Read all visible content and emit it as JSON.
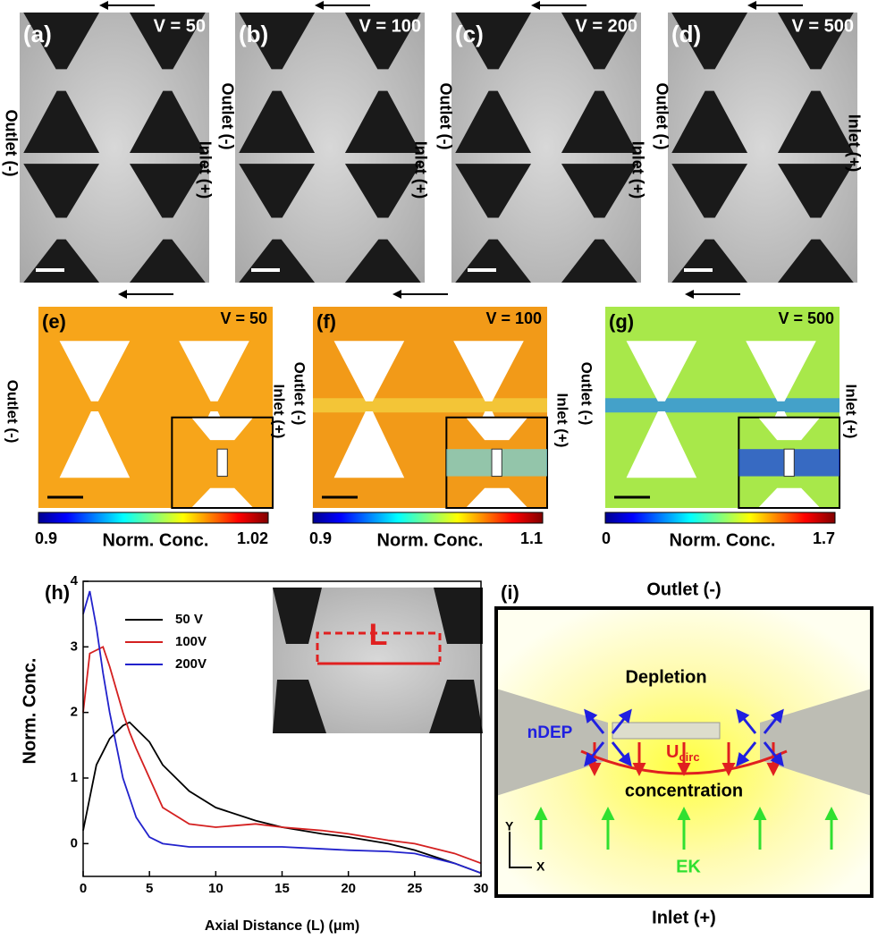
{
  "top_row": {
    "panels": [
      {
        "label": "(a)",
        "voltage": "V = 50"
      },
      {
        "label": "(b)",
        "voltage": "V = 100"
      },
      {
        "label": "(c)",
        "voltage": "V = 200"
      },
      {
        "label": "(d)",
        "voltage": "V = 500"
      }
    ],
    "side_labels": [
      "Outlet (-)",
      "Inlet (+)",
      "Outlet (-)",
      "Inlet (+)",
      "Outlet (-)",
      "Inlet (+)",
      "Outlet (-)",
      "Inlet (+)"
    ]
  },
  "middle_row": {
    "panels": [
      {
        "label": "(e)",
        "voltage": "V = 50",
        "colorbar_min": "0.9",
        "colorbar_max": "1.02",
        "colorbar_title": "Norm. Conc."
      },
      {
        "label": "(f)",
        "voltage": "V = 100",
        "colorbar_min": "0.9",
        "colorbar_max": "1.1",
        "colorbar_title": "Norm. Conc."
      },
      {
        "label": "(g)",
        "voltage": "V = 500",
        "colorbar_min": "0",
        "colorbar_max": "1.7",
        "colorbar_title": "Norm. Conc."
      }
    ],
    "side_labels": [
      "Outlet (-)",
      "Inlet (+)",
      "Outlet (-)",
      "Inlet (+)",
      "Outlet (-)",
      "Inlet (+)"
    ]
  },
  "chart_data": {
    "type": "line",
    "panel_label": "(h)",
    "x_label": "Axial Distance (L) (μm)",
    "y_label": "Norm. Conc.",
    "inset_label": "L",
    "x": [
      0,
      0.5,
      1,
      1.5,
      2,
      3,
      3.5,
      4,
      5,
      6,
      8,
      10,
      13,
      15,
      18,
      20,
      23,
      25,
      28,
      30
    ],
    "series": [
      {
        "name": "50 V",
        "color": "#000000",
        "values": [
          0.2,
          0.7,
          1.2,
          1.4,
          1.6,
          1.8,
          1.85,
          1.75,
          1.55,
          1.2,
          0.8,
          0.55,
          0.35,
          0.25,
          0.15,
          0.1,
          0,
          -0.1,
          -0.3,
          -0.45
        ]
      },
      {
        "name": "100V",
        "color": "#d42020",
        "values": [
          2.0,
          2.9,
          2.95,
          3.0,
          2.7,
          2.0,
          1.7,
          1.45,
          1.0,
          0.55,
          0.3,
          0.25,
          0.3,
          0.25,
          0.2,
          0.15,
          0.05,
          0,
          -0.15,
          -0.3
        ]
      },
      {
        "name": "200V",
        "color": "#2222cc",
        "values": [
          3.5,
          3.85,
          3.3,
          2.6,
          2.0,
          1.0,
          0.7,
          0.4,
          0.1,
          0,
          -0.05,
          -0.05,
          -0.05,
          -0.05,
          -0.08,
          -0.1,
          -0.12,
          -0.15,
          -0.3,
          -0.45
        ]
      }
    ],
    "xlim": [
      0,
      30
    ],
    "ylim": [
      -0.5,
      4
    ],
    "xticks": [
      0,
      5,
      10,
      15,
      20,
      25,
      30
    ],
    "yticks": [
      0,
      1,
      2,
      3,
      4
    ]
  },
  "schematic": {
    "label": "(i)",
    "top": "Outlet (-)",
    "bottom": "Inlet (+)",
    "depletion": "Depletion",
    "ndep": "nDEP",
    "u": "U",
    "u_sub": "circ",
    "concentration": "concentration",
    "ek": "EK",
    "axis_y": "Y",
    "axis_x": "X"
  }
}
